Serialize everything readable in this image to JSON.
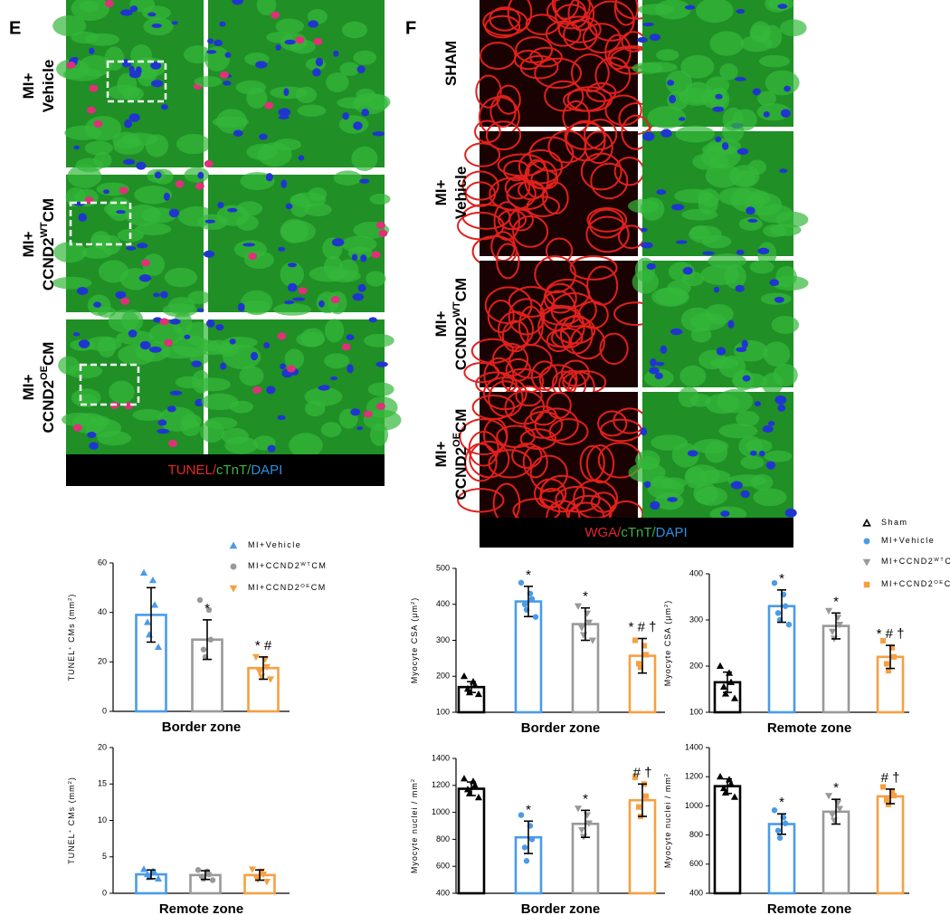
{
  "figure": {
    "panel_e": "E",
    "panel_f": "F",
    "e_rows": [
      [
        [
          {
            "text": "MI+"
          }
        ],
        [
          {
            "text": "Vehicle"
          }
        ]
      ],
      [
        [
          {
            "text": "MI+"
          }
        ],
        [
          {
            "text": "CCND2"
          },
          {
            "text": "WT",
            "sup": true
          },
          {
            "text": "CM"
          }
        ]
      ],
      [
        [
          {
            "text": "MI+"
          }
        ],
        [
          {
            "text": "CCND2"
          },
          {
            "text": "OE",
            "sup": true
          },
          {
            "text": "CM"
          }
        ]
      ]
    ],
    "f_rows": [
      [
        [
          {
            "text": "SHAM"
          }
        ]
      ],
      [
        [
          {
            "text": "MI+"
          }
        ],
        [
          {
            "text": "Vehicle"
          }
        ]
      ],
      [
        [
          {
            "text": "MI+"
          }
        ],
        [
          {
            "text": "CCND2"
          },
          {
            "text": "WT",
            "sup": true
          },
          {
            "text": "CM"
          }
        ]
      ],
      [
        [
          {
            "text": "MI+"
          }
        ],
        [
          {
            "text": "CCND2"
          },
          {
            "text": "OE",
            "sup": true
          },
          {
            "text": "CM"
          }
        ]
      ]
    ],
    "e_stain": [
      {
        "text": "TUNEL",
        "color": "#e8252b"
      },
      {
        "text": "/",
        "color": "#e8252b"
      },
      {
        "text": "cTnT",
        "color": "#3cb43c"
      },
      {
        "text": "/",
        "color": "#3cb43c"
      },
      {
        "text": "DAPI",
        "color": "#2f8fe0"
      }
    ],
    "f_stain": [
      {
        "text": "WGA",
        "color": "#e8252b"
      },
      {
        "text": "/",
        "color": "#e8252b"
      },
      {
        "text": "cTnT",
        "color": "#3cb43c"
      },
      {
        "text": "/",
        "color": "#3cb43c"
      },
      {
        "text": "DAPI",
        "color": "#2f8fe0"
      }
    ],
    "legend_e": [
      {
        "marker": "triangle",
        "color": "#4a9be8",
        "label": [
          {
            "text": "MI+Vehicle"
          }
        ]
      },
      {
        "marker": "circle",
        "color": "#999999",
        "label": [
          {
            "text": "MI+CCND2"
          },
          {
            "text": "WT",
            "sup": true
          },
          {
            "text": "CM"
          }
        ]
      },
      {
        "marker": "triangle-down",
        "color": "#f5a043",
        "label": [
          {
            "text": "MI+CCND2"
          },
          {
            "text": "OE",
            "sup": true
          },
          {
            "text": "CM"
          }
        ]
      }
    ],
    "legend_f": [
      {
        "marker": "triangle-open",
        "color": "#000000",
        "label": [
          {
            "text": "Sham"
          }
        ]
      },
      {
        "marker": "circle",
        "color": "#4a9be8",
        "label": [
          {
            "text": "MI+Vehicle"
          }
        ]
      },
      {
        "marker": "triangle-down",
        "color": "#999999",
        "label": [
          {
            "text": "MI+CCND2"
          },
          {
            "text": "WT",
            "sup": true
          },
          {
            "text": "CM"
          }
        ]
      },
      {
        "marker": "square",
        "color": "#f5a043",
        "label": [
          {
            "text": "MI+CCND2"
          },
          {
            "text": "OE",
            "sup": true
          },
          {
            "text": "CM"
          }
        ]
      }
    ]
  },
  "chart_data": [
    {
      "type": "bar",
      "xlabel": "Border zone",
      "ylabel": [
        {
          "text": "TUNEL"
        },
        {
          "text": "+",
          "sup": true
        },
        {
          "text": " CMs (mm"
        },
        {
          "text": "2",
          "sup": true
        },
        {
          "text": ")"
        }
      ],
      "ylim": [
        0,
        60
      ],
      "yticks": [
        0,
        20,
        40,
        60
      ],
      "series": [
        {
          "color": "#4a9be8",
          "marker": "triangle",
          "values": [
            39
          ],
          "errors": [
            11
          ],
          "points": [
            56,
            53,
            43,
            36,
            31,
            26
          ]
        },
        {
          "color": "#999999",
          "marker": "circle",
          "values": [
            29
          ],
          "errors": [
            8
          ],
          "points": [
            45,
            41,
            29,
            25,
            22
          ],
          "annotation": "*"
        },
        {
          "color": "#f5a043",
          "marker": "triangle-down",
          "values": [
            17.5
          ],
          "errors": [
            4.5
          ],
          "points": [
            22,
            21,
            18,
            16,
            14,
            13
          ],
          "annotation": "* #"
        }
      ]
    },
    {
      "type": "bar",
      "xlabel": "Remote zone",
      "ylabel": [
        {
          "text": "TUNEL"
        },
        {
          "text": "+",
          "sup": true
        },
        {
          "text": " CMs (mm"
        },
        {
          "text": "2",
          "sup": true
        },
        {
          "text": ")"
        }
      ],
      "ylim": [
        0,
        20
      ],
      "yticks": [
        0,
        5,
        10,
        15,
        20
      ],
      "series": [
        {
          "color": "#4a9be8",
          "marker": "triangle",
          "values": [
            2.6
          ],
          "errors": [
            0.6
          ],
          "points": [
            3.3,
            3.0,
            2.8,
            2.6,
            2.2,
            2.0
          ]
        },
        {
          "color": "#999999",
          "marker": "circle",
          "values": [
            2.5
          ],
          "errors": [
            0.6
          ],
          "points": [
            3.2,
            3.0,
            2.6,
            2.3,
            2.0,
            1.8
          ]
        },
        {
          "color": "#f5a043",
          "marker": "triangle-down",
          "values": [
            2.5
          ],
          "errors": [
            0.7
          ],
          "points": [
            3.3,
            3.0,
            2.6,
            2.2,
            1.9,
            1.6
          ]
        }
      ]
    },
    {
      "type": "bar",
      "xlabel": "Border zone",
      "ylabel": [
        {
          "text": "Myocyte CSA (μm"
        },
        {
          "text": "2",
          "sup": true
        },
        {
          "text": ")"
        }
      ],
      "ylim": [
        100,
        500
      ],
      "yticks": [
        100,
        200,
        300,
        400,
        500
      ],
      "series": [
        {
          "color": "#000000",
          "marker": "triangle",
          "values": [
            170
          ],
          "errors": [
            15
          ],
          "points": [
            200,
            185,
            175,
            165,
            155,
            150
          ]
        },
        {
          "color": "#4a9be8",
          "marker": "circle",
          "values": [
            408
          ],
          "errors": [
            42
          ],
          "points": [
            460,
            430,
            415,
            400,
            385,
            365
          ],
          "annotation": "*"
        },
        {
          "color": "#999999",
          "marker": "triangle-down",
          "values": [
            345
          ],
          "errors": [
            45
          ],
          "points": [
            395,
            375,
            350,
            335,
            315,
            300
          ],
          "annotation": "*"
        },
        {
          "color": "#f5a043",
          "marker": "square",
          "values": [
            257
          ],
          "errors": [
            48
          ],
          "points": [
            300,
            285,
            260,
            235,
            225
          ],
          "annotation": "* # †"
        }
      ]
    },
    {
      "type": "bar",
      "xlabel": "Remote zone",
      "ylabel": [
        {
          "text": "Myocyte CSA (μm"
        },
        {
          "text": "2",
          "sup": true
        },
        {
          "text": ")"
        }
      ],
      "ylim": [
        100,
        400
      ],
      "yticks": [
        100,
        200,
        300,
        400
      ],
      "series": [
        {
          "color": "#000000",
          "marker": "triangle",
          "values": [
            165
          ],
          "errors": [
            22
          ],
          "points": [
            200,
            185,
            165,
            155,
            140,
            130
          ]
        },
        {
          "color": "#4a9be8",
          "marker": "circle",
          "values": [
            330
          ],
          "errors": [
            35
          ],
          "points": [
            380,
            355,
            330,
            315,
            300,
            290
          ],
          "annotation": "*"
        },
        {
          "color": "#999999",
          "marker": "triangle-down",
          "values": [
            287
          ],
          "errors": [
            28
          ],
          "points": [
            320,
            305,
            290,
            275,
            260
          ],
          "annotation": "*"
        },
        {
          "color": "#f5a043",
          "marker": "square",
          "values": [
            220
          ],
          "errors": [
            25
          ],
          "points": [
            255,
            240,
            220,
            205,
            190
          ],
          "annotation": "* # †"
        }
      ]
    },
    {
      "type": "bar",
      "xlabel": "Border zone",
      "ylabel": [
        {
          "text": "Myocyte nuclei / mm"
        },
        {
          "text": "2",
          "sup": true
        }
      ],
      "ylim": [
        400,
        1400
      ],
      "yticks": [
        400,
        600,
        800,
        1000,
        1200,
        1400
      ],
      "series": [
        {
          "color": "#000000",
          "marker": "triangle",
          "values": [
            1175
          ],
          "errors": [
            50
          ],
          "points": [
            1250,
            1230,
            1200,
            1170,
            1140,
            1110
          ]
        },
        {
          "color": "#4a9be8",
          "marker": "circle",
          "values": [
            815
          ],
          "errors": [
            120
          ],
          "points": [
            980,
            900,
            800,
            740,
            640
          ],
          "annotation": "*"
        },
        {
          "color": "#999999",
          "marker": "triangle-down",
          "values": [
            915
          ],
          "errors": [
            100
          ],
          "points": [
            1030,
            980,
            920,
            870,
            820
          ],
          "annotation": "*"
        },
        {
          "color": "#f5a043",
          "marker": "square",
          "values": [
            1090
          ],
          "errors": [
            120
          ],
          "points": [
            1260,
            1210,
            1120,
            1040,
            970
          ],
          "annotation": "# †"
        }
      ]
    },
    {
      "type": "bar",
      "xlabel": "Remote zone",
      "ylabel": [
        {
          "text": "Myocyte nuclei / mm"
        },
        {
          "text": "2",
          "sup": true
        }
      ],
      "ylim": [
        400,
        1400
      ],
      "yticks": [
        400,
        600,
        800,
        1000,
        1200,
        1400
      ],
      "series": [
        {
          "color": "#000000",
          "marker": "triangle",
          "values": [
            1135
          ],
          "errors": [
            50
          ],
          "points": [
            1200,
            1180,
            1150,
            1120,
            1090,
            1060
          ]
        },
        {
          "color": "#4a9be8",
          "marker": "circle",
          "values": [
            875
          ],
          "errors": [
            70
          ],
          "points": [
            970,
            920,
            880,
            830,
            780
          ],
          "annotation": "*"
        },
        {
          "color": "#999999",
          "marker": "triangle-down",
          "values": [
            960
          ],
          "errors": [
            85
          ],
          "points": [
            1070,
            1020,
            980,
            940,
            900
          ],
          "annotation": "*"
        },
        {
          "color": "#f5a043",
          "marker": "square",
          "values": [
            1065
          ],
          "errors": [
            50
          ],
          "points": [
            1130,
            1100,
            1070,
            1040,
            1010
          ],
          "annotation": "# †"
        }
      ]
    }
  ]
}
